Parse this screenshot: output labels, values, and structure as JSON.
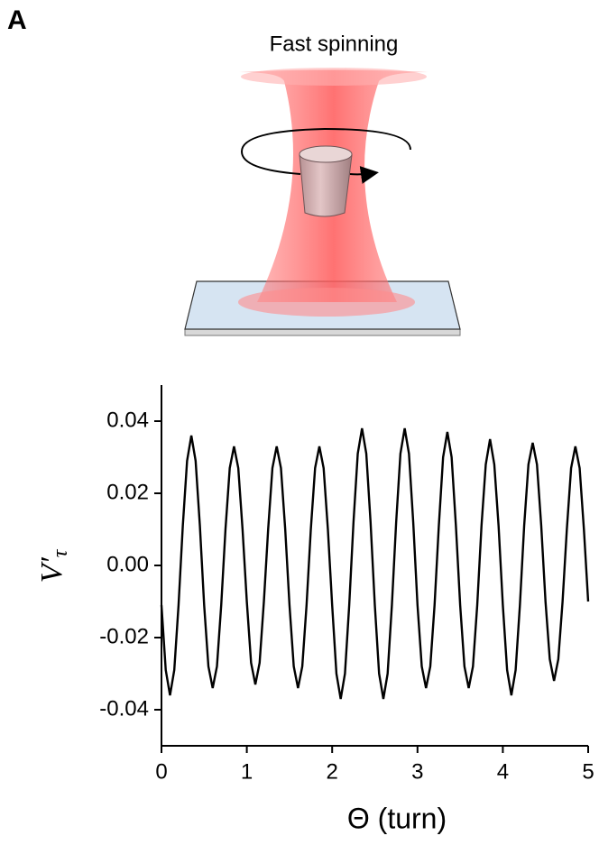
{
  "panel_label": "A",
  "illustration": {
    "title": "Fast spinning"
  },
  "chart_data": {
    "type": "line",
    "x_label": "Θ (turn)",
    "y_label": {
      "symbol": "V′",
      "subscript": "τ"
    },
    "x": [
      0,
      0.05,
      0.1,
      0.15,
      0.2,
      0.25,
      0.3,
      0.35,
      0.4,
      0.45,
      0.5,
      0.55,
      0.6,
      0.65,
      0.7,
      0.75,
      0.8,
      0.85,
      0.9,
      0.95,
      1,
      1.05,
      1.1,
      1.15,
      1.2,
      1.25,
      1.3,
      1.35,
      1.4,
      1.45,
      1.5,
      1.55,
      1.6,
      1.65,
      1.7,
      1.75,
      1.8,
      1.85,
      1.9,
      1.95,
      2,
      2.05,
      2.1,
      2.15,
      2.2,
      2.25,
      2.3,
      2.35,
      2.4,
      2.45,
      2.5,
      2.55,
      2.6,
      2.65,
      2.7,
      2.75,
      2.8,
      2.85,
      2.9,
      2.95,
      3,
      3.05,
      3.1,
      3.15,
      3.2,
      3.25,
      3.3,
      3.35,
      3.4,
      3.45,
      3.5,
      3.55,
      3.6,
      3.65,
      3.7,
      3.75,
      3.8,
      3.85,
      3.9,
      3.95,
      4,
      4.05,
      4.1,
      4.15,
      4.2,
      4.25,
      4.3,
      4.35,
      4.4,
      4.45,
      4.5,
      4.55,
      4.6,
      4.65,
      4.7,
      4.75,
      4.8,
      4.85,
      4.9,
      4.95,
      5
    ],
    "series": [
      {
        "color": "#000000",
        "values": [
          -0.011,
          -0.029,
          -0.036,
          -0.029,
          -0.011,
          0.011,
          0.029,
          0.036,
          0.029,
          0.011,
          -0.011,
          -0.028,
          -0.034,
          -0.028,
          -0.011,
          0.01,
          0.027,
          0.033,
          0.027,
          0.01,
          -0.01,
          -0.027,
          -0.033,
          -0.027,
          -0.01,
          0.01,
          0.027,
          0.033,
          0.027,
          0.01,
          -0.011,
          -0.028,
          -0.034,
          -0.028,
          -0.011,
          0.01,
          0.027,
          0.033,
          0.027,
          0.01,
          -0.011,
          -0.03,
          -0.037,
          -0.03,
          -0.011,
          0.012,
          0.031,
          0.038,
          0.031,
          0.012,
          -0.011,
          -0.03,
          -0.037,
          -0.03,
          -0.011,
          0.012,
          0.031,
          0.038,
          0.031,
          0.012,
          -0.011,
          -0.028,
          -0.034,
          -0.028,
          -0.011,
          0.011,
          0.03,
          0.037,
          0.03,
          0.011,
          -0.011,
          -0.028,
          -0.034,
          -0.028,
          -0.011,
          0.011,
          0.028,
          0.035,
          0.028,
          0.011,
          -0.011,
          -0.029,
          -0.036,
          -0.029,
          -0.011,
          0.011,
          0.028,
          0.034,
          0.028,
          0.011,
          -0.01,
          -0.026,
          -0.032,
          -0.026,
          -0.01,
          0.01,
          0.027,
          0.033,
          0.027,
          0.01,
          -0.01
        ]
      }
    ],
    "xlim": [
      0,
      5
    ],
    "xticks": [
      0,
      1,
      2,
      3,
      4,
      5
    ],
    "ylim": [
      -0.05,
      0.05
    ],
    "yticks": [
      0.04,
      0.02,
      {
        "value": 0,
        "label": "0.00"
      },
      -0.02,
      -0.04
    ],
    "grid": false
  }
}
